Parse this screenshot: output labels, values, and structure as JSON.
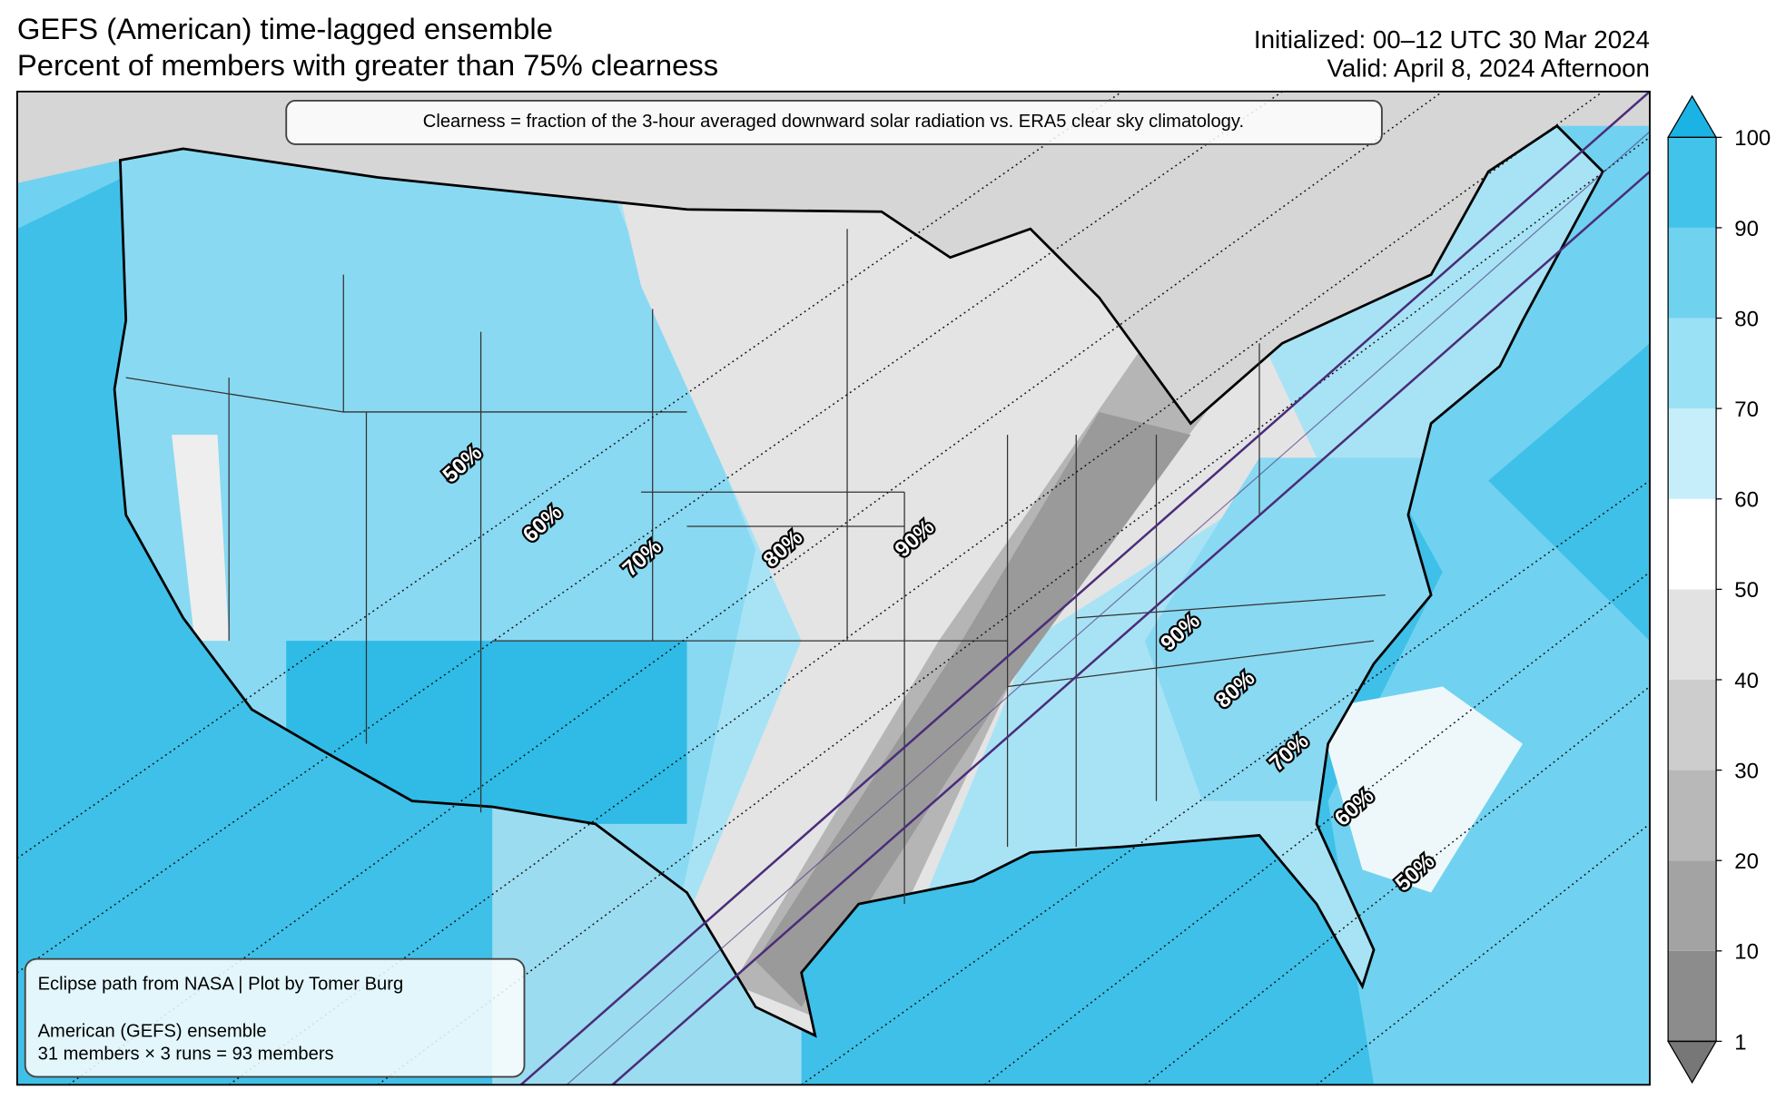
{
  "header": {
    "title_line1": "GEFS (American) time-lagged ensemble",
    "title_line2": "Percent of members with greater than 75% clearness",
    "initialized": "Initialized: 00–12 UTC 30 Mar 2024",
    "valid": "Valid: April 8, 2024 Afternoon"
  },
  "note": "Clearness = fraction of the 3-hour averaged downward solar radiation vs. ERA5 clear sky climatology.",
  "credits": {
    "line1": "Eclipse path from NASA | Plot by Tomer Burg",
    "line2": "American (GEFS) ensemble",
    "line3": "31 members × 3 runs = 93 members"
  },
  "colorbar": {
    "ticks": [
      1,
      10,
      20,
      30,
      40,
      50,
      60,
      70,
      80,
      90,
      100
    ]
  },
  "contour_labels": [
    "50%",
    "60%",
    "70%",
    "80%",
    "90%",
    "90%",
    "80%",
    "70%",
    "60%",
    "50%"
  ]
}
